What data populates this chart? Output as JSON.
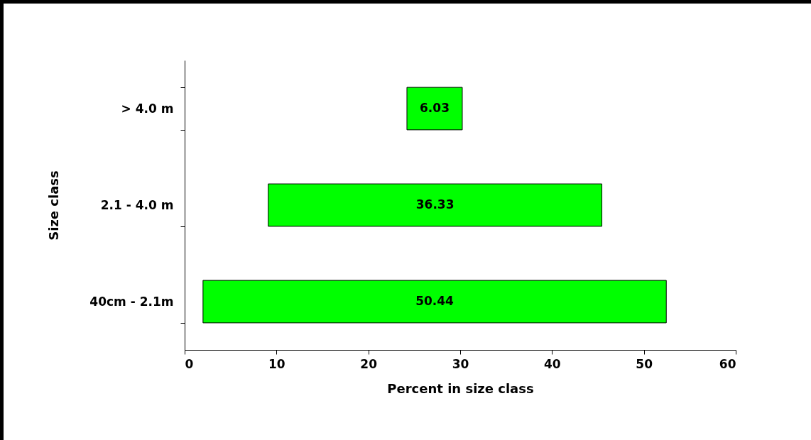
{
  "chart_data": {
    "type": "bar",
    "orientation": "horizontal",
    "xlabel": "Percent in size class",
    "ylabel": "Size class",
    "categories": [
      "> 4.0 m",
      "2.1 - 4.0 m",
      "40cm - 2.1m"
    ],
    "values": [
      6.03,
      36.33,
      50.44
    ],
    "base": [
      24.2,
      9.1,
      2.0
    ],
    "color": "#00ff00",
    "xlim": [
      0,
      60
    ],
    "xticks": [
      0,
      10,
      20,
      30,
      40,
      50,
      60
    ],
    "data_labels": true,
    "grid": false
  }
}
